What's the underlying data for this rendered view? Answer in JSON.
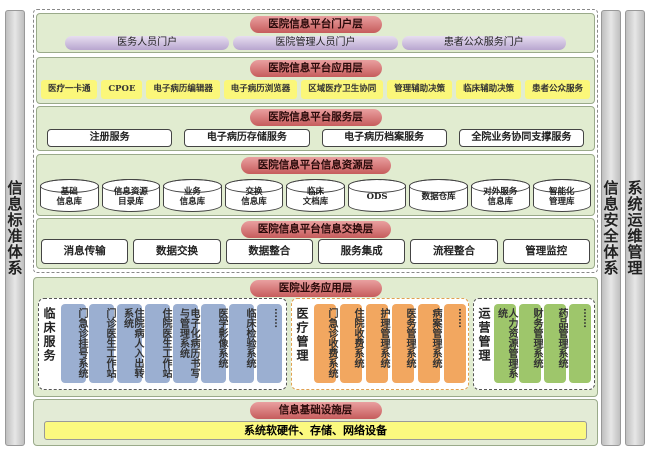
{
  "side": {
    "left": "信息标准体系",
    "right1": "信息安全体系",
    "right2": "系统运维管理"
  },
  "portal": {
    "title": "医院信息平台门户层",
    "items": [
      "医务人员门户",
      "医院管理人员门户",
      "患者公众服务门户"
    ]
  },
  "application": {
    "title": "医院信息平台应用层",
    "items": [
      "医疗一卡通",
      "CPOE",
      "电子病历编辑器",
      "电子病历浏览器",
      "区域医疗卫生协同",
      "管理辅助决策",
      "临床辅助决策",
      "患者公众服务"
    ]
  },
  "service": {
    "title": "医院信息平台服务层",
    "items": [
      "注册服务",
      "电子病历存储服务",
      "电子病历档案服务",
      "全院业务协同支撑服务"
    ]
  },
  "resource": {
    "title": "医院信息平台信息资源层",
    "items": [
      [
        "基础",
        "信息库"
      ],
      [
        "信息资源",
        "目录库"
      ],
      [
        "业务",
        "信息库"
      ],
      [
        "交换",
        "信息库"
      ],
      [
        "临床",
        "文档库"
      ],
      [
        "ODS"
      ],
      [
        "数据仓库"
      ],
      [
        "对外服务",
        "信息库"
      ],
      [
        "智能化",
        "管理库"
      ]
    ]
  },
  "exchange": {
    "title": "医院信息平台信息交换层",
    "items": [
      "消息传输",
      "数据交换",
      "数据整合",
      "服务集成",
      "流程整合",
      "管理监控"
    ]
  },
  "business": {
    "title": "医院业务应用层",
    "groups": [
      {
        "label": "临床服务",
        "color": "blue",
        "items": [
          "门急诊挂号系统",
          "门诊医生工作站",
          "住院病人入出转系统",
          "住院医生工作站",
          "电子化病历书写与管理系统",
          "医学影像系统",
          "临床检验系统",
          "……"
        ]
      },
      {
        "label": "医疗管理",
        "color": "orange",
        "items": [
          "门急诊收费系统",
          "住院收费系统",
          "护理管理系统",
          "医务管理系统",
          "病案管理系统",
          "……"
        ]
      },
      {
        "label": "运营管理",
        "color": "green",
        "items": [
          "人力资源管理系统",
          "财务管理系统",
          "药品管理系统",
          "……"
        ]
      }
    ]
  },
  "infrastructure": {
    "title": "信息基础设施层",
    "item": "系统软硬件、存储、网络设备"
  }
}
